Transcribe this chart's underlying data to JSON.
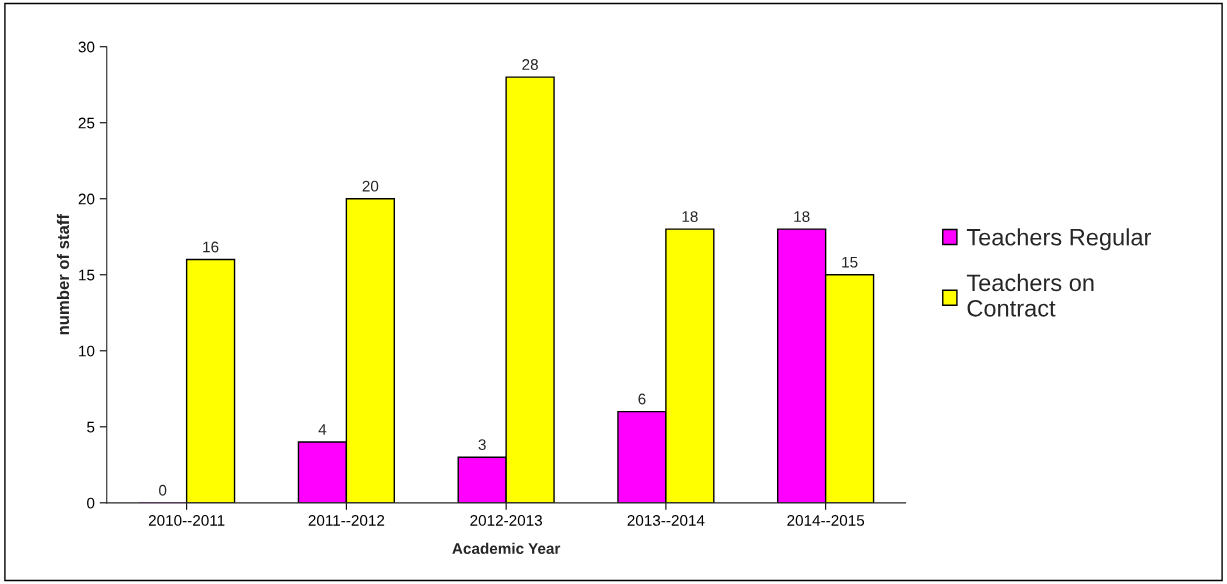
{
  "chart_data": {
    "type": "bar",
    "xlabel": "Academic Year",
    "ylabel": "number of staff",
    "categories": [
      "2010--2011",
      "2011--2012",
      "2012-2013",
      "2013--2014",
      "2014--2015"
    ],
    "series": [
      {
        "name": "Teachers Regular",
        "color": "#ff00ff",
        "values": [
          0,
          4,
          3,
          6,
          18
        ]
      },
      {
        "name": "Teachers on Contract",
        "color": "#ffff00",
        "values": [
          16,
          20,
          28,
          18,
          15
        ]
      }
    ],
    "ylim": [
      0,
      30
    ],
    "yticks": [
      0,
      5,
      10,
      15,
      20,
      25,
      30
    ],
    "data_labels": true,
    "grid": false,
    "legend": "right"
  }
}
